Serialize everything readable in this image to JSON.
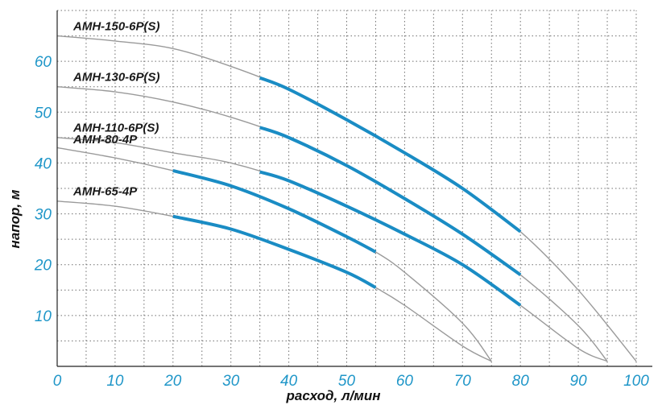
{
  "colors": {
    "tick": "#1f96c8",
    "op_range": "#1a8cc4",
    "full_curve": "#9a9a9a",
    "grid": "#6f6f6f",
    "axis": "#222222",
    "label": "#1a1a1a"
  },
  "chart_data": {
    "type": "line",
    "title": "",
    "xlabel": "расход, л/мин",
    "ylabel": "напор, м",
    "xlim": [
      0,
      100
    ],
    "ylim": [
      0,
      70
    ],
    "x_ticks": [
      0,
      10,
      20,
      30,
      40,
      50,
      60,
      70,
      80,
      90,
      100
    ],
    "x_tick_labels": [
      "0",
      "10",
      "20",
      "30",
      "40",
      "50",
      "60",
      "70",
      "80",
      "90",
      "100"
    ],
    "y_ticks": [
      10,
      20,
      30,
      40,
      50,
      60
    ],
    "y_tick_labels": [
      "10",
      "20",
      "30",
      "40",
      "50",
      "60"
    ],
    "grid": true,
    "grid_step": {
      "x": 5,
      "y": 5
    },
    "series": [
      {
        "name": "AMH-150-6P(S)",
        "curve": [
          [
            0,
            65
          ],
          [
            10,
            64
          ],
          [
            20,
            62.5
          ],
          [
            30,
            59
          ],
          [
            40,
            54.5
          ],
          [
            50,
            48.5
          ],
          [
            60,
            42
          ],
          [
            70,
            35
          ],
          [
            80,
            26.5
          ],
          [
            90,
            15
          ],
          [
            100,
            1
          ]
        ],
        "operating_range": [
          35,
          80
        ]
      },
      {
        "name": "AMH-130-6P(S)",
        "curve": [
          [
            0,
            55
          ],
          [
            10,
            54
          ],
          [
            20,
            52
          ],
          [
            30,
            49
          ],
          [
            40,
            45
          ],
          [
            50,
            39.5
          ],
          [
            60,
            33
          ],
          [
            70,
            26
          ],
          [
            80,
            18
          ],
          [
            90,
            8
          ],
          [
            95,
            1
          ]
        ],
        "operating_range": [
          35,
          80
        ]
      },
      {
        "name": "AMH-110-6P(S)",
        "curve": [
          [
            0,
            45
          ],
          [
            10,
            44
          ],
          [
            20,
            42
          ],
          [
            30,
            40
          ],
          [
            40,
            36.5
          ],
          [
            50,
            31.5
          ],
          [
            60,
            26
          ],
          [
            70,
            20
          ],
          [
            80,
            12
          ],
          [
            90,
            3.5
          ],
          [
            95,
            1
          ]
        ],
        "operating_range": [
          35,
          80
        ]
      },
      {
        "name": "AMH-80-4P",
        "curve": [
          [
            0,
            43
          ],
          [
            10,
            41
          ],
          [
            20,
            38.5
          ],
          [
            30,
            35.5
          ],
          [
            40,
            31
          ],
          [
            50,
            25.5
          ],
          [
            55,
            22.5
          ],
          [
            60,
            18.5
          ],
          [
            70,
            8.5
          ],
          [
            75,
            1
          ]
        ],
        "operating_range": [
          20,
          55
        ]
      },
      {
        "name": "AMH-65-4P",
        "curve": [
          [
            0,
            32.5
          ],
          [
            10,
            31.5
          ],
          [
            20,
            29.5
          ],
          [
            30,
            27
          ],
          [
            40,
            23
          ],
          [
            50,
            18.5
          ],
          [
            55,
            15.5
          ],
          [
            60,
            12
          ],
          [
            70,
            4
          ],
          [
            75,
            1
          ]
        ],
        "operating_range": [
          20,
          55
        ]
      }
    ]
  }
}
